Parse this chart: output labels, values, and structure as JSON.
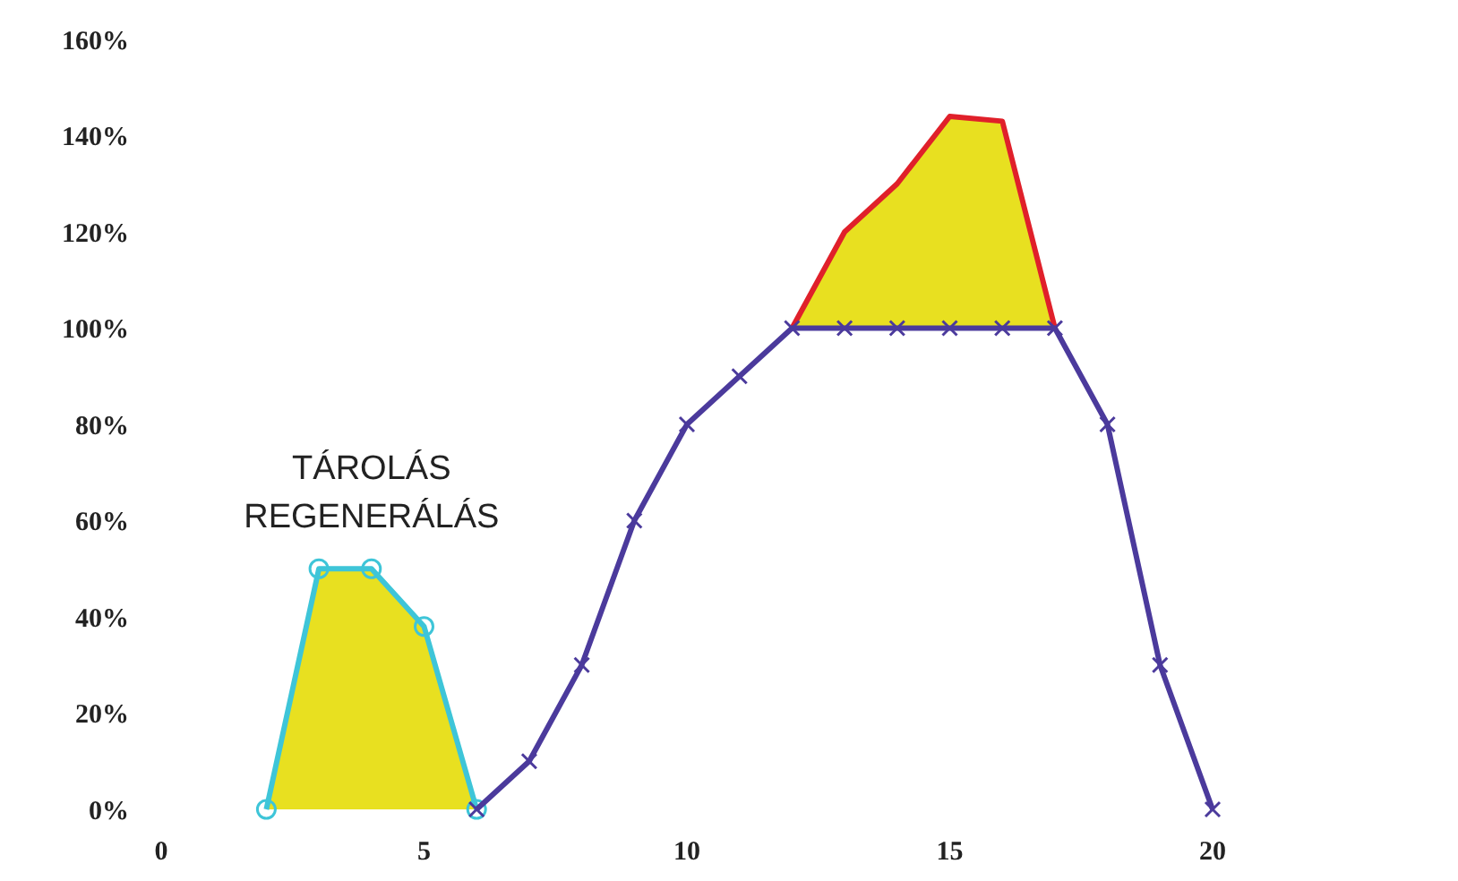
{
  "chart_data": {
    "type": "line",
    "xlim": [
      0,
      20
    ],
    "xticks": [
      0,
      5,
      10,
      15,
      20
    ],
    "ylim": [
      0,
      160
    ],
    "yticks": [
      {
        "value": 0,
        "label": "0%"
      },
      {
        "value": 20,
        "label": "20%"
      },
      {
        "value": 40,
        "label": "40%"
      },
      {
        "value": 60,
        "label": "60%"
      },
      {
        "value": 80,
        "label": "80%"
      },
      {
        "value": 100,
        "label": "100%"
      },
      {
        "value": 120,
        "label": "120%"
      },
      {
        "value": 140,
        "label": "140%"
      },
      {
        "value": 160,
        "label": "160%"
      }
    ],
    "grid": false,
    "legend": false,
    "series": [
      {
        "name": "TÁROLÁS REGENERÁLÁS",
        "type": "area",
        "color": "#3ec5d8",
        "marker": "circle",
        "x": [
          2,
          3,
          4,
          5,
          6
        ],
        "values": [
          0,
          50,
          50,
          38,
          0
        ]
      },
      {
        "type": "line",
        "color": "#e0202a",
        "marker": "none",
        "x": [
          12,
          13,
          14,
          15,
          16,
          17
        ],
        "values": [
          100,
          120,
          130,
          144,
          143,
          100
        ],
        "lower": [
          100,
          100,
          100,
          100,
          100,
          100
        ],
        "upper": [
          100,
          120,
          130,
          144,
          143,
          100
        ]
      },
      {
        "color": "#4b3a9c",
        "marker": "cross",
        "x": [
          6,
          7,
          8,
          9,
          10,
          11,
          12,
          13,
          14,
          15,
          16,
          17,
          18,
          19,
          20
        ],
        "values": [
          0,
          10,
          30,
          60,
          80,
          90,
          100,
          100,
          100,
          100,
          100,
          100,
          80,
          30,
          0
        ]
      }
    ]
  }
}
